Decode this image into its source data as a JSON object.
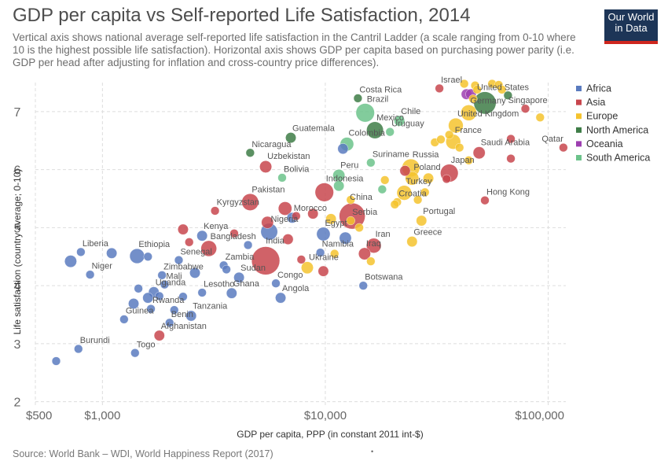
{
  "title": "GDP per capita vs Self-reported Life Satisfaction, 2014",
  "subtitle": "Vertical axis shows national average self-reported life satisfaction in the Cantril Ladder (a scale ranging from 0-10 where 10 is the highest possible life satisfaction). Horizontal axis shows GDP per capita based on purchasing power parity (i.e. GDP per head after adjusting for inflation and cross-country price differences).",
  "logo": {
    "line1": "Our World",
    "line2": "in Data"
  },
  "source": "Source: World Bank – WDI, World Happiness Report (2017)",
  "colors": {
    "Africa": "#5a7bbf",
    "Asia": "#c8464d",
    "Europe": "#f5c32e",
    "North America": "#3e7d47",
    "Oceania": "#9d3fb0",
    "South America": "#6cc38b"
  },
  "chart_data": {
    "type": "scatter",
    "title": "GDP per capita vs Self-reported Life Satisfaction, 2014",
    "xlabel": "GDP per capita, PPP (in constant 2011 int-$)",
    "ylabel": "Life satisfaction (country average; 0-10)",
    "xscale": "log",
    "xlim": [
      500,
      120000
    ],
    "ylim": [
      1.9,
      7.5
    ],
    "xticks": [
      {
        "v": 500,
        "t": "$500"
      },
      {
        "v": 1000,
        "t": "$1,000"
      },
      {
        "v": 10000,
        "t": "$10,000"
      },
      {
        "v": 100000,
        "t": "$100,000"
      }
    ],
    "yticks": [
      2,
      3,
      4,
      5,
      6,
      7
    ],
    "grid": true,
    "legend_position": "right",
    "legend": [
      "Africa",
      "Asia",
      "Europe",
      "North America",
      "Oceania",
      "South America"
    ],
    "points": [
      {
        "name": "Liberia",
        "x": 800,
        "y": 4.58,
        "region": "Africa",
        "pop": 1,
        "label": true
      },
      {
        "name": "Niger",
        "x": 880,
        "y": 4.19,
        "region": "Africa",
        "pop": 1,
        "label": true
      },
      {
        "name": "Burundi",
        "x": 780,
        "y": 2.91,
        "region": "Africa",
        "pop": 1,
        "label": true
      },
      {
        "name": "Togo",
        "x": 1400,
        "y": 2.84,
        "region": "Africa",
        "pop": 1,
        "label": true
      },
      {
        "name": "Ethiopia",
        "x": 1430,
        "y": 4.51,
        "region": "Africa",
        "pop": 5,
        "label": true
      },
      {
        "name": "Uganda",
        "x": 1700,
        "y": 3.89,
        "region": "Africa",
        "pop": 2,
        "label": true
      },
      {
        "name": "Mali",
        "x": 1900,
        "y": 4.02,
        "region": "Africa",
        "pop": 1,
        "label": true
      },
      {
        "name": "Rwanda",
        "x": 1650,
        "y": 3.6,
        "region": "Africa",
        "pop": 1,
        "label": true
      },
      {
        "name": "Guinea",
        "x": 1250,
        "y": 3.42,
        "region": "Africa",
        "pop": 1,
        "label": true
      },
      {
        "name": "Benin",
        "x": 2000,
        "y": 3.36,
        "region": "Africa",
        "pop": 1,
        "label": true
      },
      {
        "name": "Tanzania",
        "x": 2500,
        "y": 3.48,
        "region": "Africa",
        "pop": 2,
        "label": true
      },
      {
        "name": "Zimbabwe",
        "x": 1850,
        "y": 4.18,
        "region": "Africa",
        "pop": 1,
        "label": true
      },
      {
        "name": "Senegal",
        "x": 2200,
        "y": 4.44,
        "region": "Africa",
        "pop": 1,
        "label": true
      },
      {
        "name": "Kenya",
        "x": 2800,
        "y": 4.86,
        "region": "Africa",
        "pop": 2,
        "label": true
      },
      {
        "name": "Zambia",
        "x": 3500,
        "y": 4.35,
        "region": "Africa",
        "pop": 1,
        "label": true
      },
      {
        "name": "Sudan",
        "x": 4100,
        "y": 4.14,
        "region": "Africa",
        "pop": 2,
        "label": true
      },
      {
        "name": "Ghana",
        "x": 3800,
        "y": 3.87,
        "region": "Africa",
        "pop": 2,
        "label": true
      },
      {
        "name": "Congo",
        "x": 6000,
        "y": 4.04,
        "region": "Africa",
        "pop": 1,
        "label": true
      },
      {
        "name": "Angola",
        "x": 6300,
        "y": 3.79,
        "region": "Africa",
        "pop": 2,
        "label": true
      },
      {
        "name": "Nigeria",
        "x": 5600,
        "y": 4.93,
        "region": "Africa",
        "pop": 7,
        "label": true
      },
      {
        "name": "Egypt",
        "x": 9800,
        "y": 4.89,
        "region": "Africa",
        "pop": 4,
        "label": true
      },
      {
        "name": "Namibia",
        "x": 9500,
        "y": 4.57,
        "region": "Africa",
        "pop": 1,
        "label": true
      },
      {
        "name": "Botswana",
        "x": 14800,
        "y": 4.0,
        "region": "Africa",
        "pop": 1,
        "label": true
      },
      {
        "name": "Afghanistan",
        "x": 1800,
        "y": 3.14,
        "region": "Asia",
        "pop": 2,
        "label": true
      },
      {
        "name": "Bangladesh",
        "x": 3000,
        "y": 4.64,
        "region": "Asia",
        "pop": 6,
        "label": true
      },
      {
        "name": "Lesotho",
        "x": 2800,
        "y": 3.88,
        "region": "Africa",
        "pop": 1,
        "label": true
      },
      {
        "name": "India",
        "x": 5400,
        "y": 4.43,
        "region": "Asia",
        "pop": 24,
        "label": true
      },
      {
        "name": "Kyrgyzstan",
        "x": 3200,
        "y": 5.29,
        "region": "Asia",
        "pop": 1,
        "label": true
      },
      {
        "name": "Pakistan",
        "x": 4600,
        "y": 5.44,
        "region": "Asia",
        "pop": 7,
        "label": true
      },
      {
        "name": "Morocco",
        "x": 7100,
        "y": 5.17,
        "region": "Africa",
        "pop": 2,
        "label": true
      },
      {
        "name": "Indonesia",
        "x": 9900,
        "y": 5.61,
        "region": "Asia",
        "pop": 9,
        "label": true
      },
      {
        "name": "China",
        "x": 13200,
        "y": 5.2,
        "region": "Asia",
        "pop": 20,
        "label": true
      },
      {
        "name": "Serbia",
        "x": 13000,
        "y": 5.12,
        "region": "Europe",
        "pop": 1,
        "label": true
      },
      {
        "name": "Ukraine",
        "x": 8300,
        "y": 4.31,
        "region": "Europe",
        "pop": 3,
        "label": true
      },
      {
        "name": "Iran",
        "x": 16500,
        "y": 4.69,
        "region": "Asia",
        "pop": 5,
        "label": true
      },
      {
        "name": "Iraq",
        "x": 15000,
        "y": 4.55,
        "region": "Asia",
        "pop": 3,
        "label": true
      },
      {
        "name": "Greece",
        "x": 24500,
        "y": 4.76,
        "region": "Europe",
        "pop": 2,
        "label": true
      },
      {
        "name": "Portugal",
        "x": 27000,
        "y": 5.12,
        "region": "Europe",
        "pop": 2,
        "label": true
      },
      {
        "name": "Croatia",
        "x": 21000,
        "y": 5.44,
        "region": "Europe",
        "pop": 1,
        "label": true
      },
      {
        "name": "Turkey",
        "x": 22600,
        "y": 5.6,
        "region": "Europe",
        "pop": 5,
        "label": true
      },
      {
        "name": "Poland",
        "x": 24500,
        "y": 5.85,
        "region": "Europe",
        "pop": 4,
        "label": true
      },
      {
        "name": "Russia",
        "x": 24200,
        "y": 6.03,
        "region": "Europe",
        "pop": 8,
        "label": true
      },
      {
        "name": "Japan",
        "x": 36000,
        "y": 5.94,
        "region": "Asia",
        "pop": 8,
        "label": true
      },
      {
        "name": "Hong Kong",
        "x": 52000,
        "y": 5.47,
        "region": "Asia",
        "pop": 1,
        "label": true
      },
      {
        "name": "Saudi Arabia",
        "x": 49000,
        "y": 6.29,
        "region": "Asia",
        "pop": 3,
        "label": true
      },
      {
        "name": "Qatar",
        "x": 117000,
        "y": 6.38,
        "region": "Asia",
        "pop": 1,
        "label": true
      },
      {
        "name": "France",
        "x": 37500,
        "y": 6.48,
        "region": "Europe",
        "pop": 5,
        "label": true
      },
      {
        "name": "United Kingdom",
        "x": 38500,
        "y": 6.76,
        "region": "Europe",
        "pop": 5,
        "label": true
      },
      {
        "name": "Germany",
        "x": 44000,
        "y": 6.98,
        "region": "Europe",
        "pop": 6,
        "label": true
      },
      {
        "name": "United States",
        "x": 52000,
        "y": 7.15,
        "region": "North America",
        "pop": 14,
        "label": true
      },
      {
        "name": "Singapore",
        "x": 79000,
        "y": 7.05,
        "region": "Asia",
        "pop": 1,
        "label": true
      },
      {
        "name": "Israel",
        "x": 32500,
        "y": 7.4,
        "region": "Asia",
        "pop": 1,
        "label": true
      },
      {
        "name": "Costa Rica",
        "x": 14000,
        "y": 7.23,
        "region": "North America",
        "pop": 1,
        "label": true
      },
      {
        "name": "Brazil",
        "x": 15100,
        "y": 6.98,
        "region": "South America",
        "pop": 9,
        "label": true
      },
      {
        "name": "Mexico",
        "x": 16700,
        "y": 6.68,
        "region": "North America",
        "pop": 7,
        "label": true
      },
      {
        "name": "Chile",
        "x": 21500,
        "y": 6.84,
        "region": "South America",
        "pop": 2,
        "label": true
      },
      {
        "name": "Uruguay",
        "x": 19500,
        "y": 6.65,
        "region": "South America",
        "pop": 1,
        "label": true
      },
      {
        "name": "Colombia",
        "x": 12500,
        "y": 6.44,
        "region": "South America",
        "pop": 4,
        "label": true
      },
      {
        "name": "Suriname",
        "x": 16000,
        "y": 6.12,
        "region": "South America",
        "pop": 1,
        "label": true
      },
      {
        "name": "Guatemala",
        "x": 7000,
        "y": 6.55,
        "region": "North America",
        "pop": 2,
        "label": true
      },
      {
        "name": "Nicaragua",
        "x": 4600,
        "y": 6.29,
        "region": "North America",
        "pop": 1,
        "label": true
      },
      {
        "name": "Uzbekistan",
        "x": 5400,
        "y": 6.05,
        "region": "Asia",
        "pop": 3,
        "label": true
      },
      {
        "name": "Bolivia",
        "x": 6400,
        "y": 5.86,
        "region": "South America",
        "pop": 1,
        "label": true
      },
      {
        "name": "Peru",
        "x": 11500,
        "y": 5.9,
        "region": "South America",
        "pop": 3,
        "label": true
      },
      {
        "name": "",
        "x": 620,
        "y": 2.7,
        "region": "Africa",
        "pop": 1,
        "label": false
      },
      {
        "name": "",
        "x": 720,
        "y": 4.42,
        "region": "Africa",
        "pop": 3,
        "label": false
      },
      {
        "name": "",
        "x": 1100,
        "y": 4.56,
        "region": "Africa",
        "pop": 2,
        "label": false
      },
      {
        "name": "",
        "x": 1600,
        "y": 4.5,
        "region": "Africa",
        "pop": 1,
        "label": false
      },
      {
        "name": "",
        "x": 1450,
        "y": 3.95,
        "region": "Africa",
        "pop": 1,
        "label": false
      },
      {
        "name": "",
        "x": 1600,
        "y": 3.79,
        "region": "Africa",
        "pop": 2,
        "label": false
      },
      {
        "name": "",
        "x": 1380,
        "y": 3.69,
        "region": "Africa",
        "pop": 2,
        "label": false
      },
      {
        "name": "",
        "x": 1800,
        "y": 3.82,
        "region": "Africa",
        "pop": 1,
        "label": false
      },
      {
        "name": "",
        "x": 2100,
        "y": 3.58,
        "region": "Africa",
        "pop": 1,
        "label": false
      },
      {
        "name": "",
        "x": 2300,
        "y": 3.81,
        "region": "Africa",
        "pop": 1,
        "label": false
      },
      {
        "name": "",
        "x": 2600,
        "y": 4.22,
        "region": "Africa",
        "pop": 2,
        "label": false
      },
      {
        "name": "",
        "x": 2450,
        "y": 4.75,
        "region": "Asia",
        "pop": 1,
        "label": false
      },
      {
        "name": "",
        "x": 2300,
        "y": 4.97,
        "region": "Asia",
        "pop": 2,
        "label": false
      },
      {
        "name": "",
        "x": 3600,
        "y": 4.28,
        "region": "Africa",
        "pop": 1,
        "label": false
      },
      {
        "name": "",
        "x": 3900,
        "y": 4.9,
        "region": "Asia",
        "pop": 1,
        "label": false
      },
      {
        "name": "",
        "x": 4500,
        "y": 4.7,
        "region": "Africa",
        "pop": 1,
        "label": false
      },
      {
        "name": "",
        "x": 5500,
        "y": 5.09,
        "region": "Asia",
        "pop": 3,
        "label": false
      },
      {
        "name": "",
        "x": 6600,
        "y": 5.33,
        "region": "Asia",
        "pop": 4,
        "label": false
      },
      {
        "name": "",
        "x": 6800,
        "y": 4.8,
        "region": "Asia",
        "pop": 2,
        "label": false
      },
      {
        "name": "",
        "x": 7400,
        "y": 5.2,
        "region": "Asia",
        "pop": 1,
        "label": false
      },
      {
        "name": "",
        "x": 7800,
        "y": 4.45,
        "region": "Asia",
        "pop": 1,
        "label": false
      },
      {
        "name": "",
        "x": 8800,
        "y": 5.24,
        "region": "Asia",
        "pop": 2,
        "label": false
      },
      {
        "name": "",
        "x": 9800,
        "y": 4.25,
        "region": "Asia",
        "pop": 2,
        "label": false
      },
      {
        "name": "",
        "x": 10600,
        "y": 5.15,
        "region": "Europe",
        "pop": 2,
        "label": false
      },
      {
        "name": "",
        "x": 11000,
        "y": 4.55,
        "region": "Europe",
        "pop": 1,
        "label": false
      },
      {
        "name": "",
        "x": 12300,
        "y": 4.82,
        "region": "Africa",
        "pop": 3,
        "label": false
      },
      {
        "name": "",
        "x": 11500,
        "y": 5.72,
        "region": "South America",
        "pop": 2,
        "label": false
      },
      {
        "name": "",
        "x": 12000,
        "y": 6.36,
        "region": "Africa",
        "pop": 2,
        "label": false
      },
      {
        "name": "",
        "x": 13000,
        "y": 5.48,
        "region": "Europe",
        "pop": 1,
        "label": false
      },
      {
        "name": "",
        "x": 14200,
        "y": 5.0,
        "region": "Europe",
        "pop": 1,
        "label": false
      },
      {
        "name": "",
        "x": 16000,
        "y": 4.42,
        "region": "Europe",
        "pop": 1,
        "label": false
      },
      {
        "name": "",
        "x": 18000,
        "y": 5.66,
        "region": "South America",
        "pop": 1,
        "label": false
      },
      {
        "name": "",
        "x": 18500,
        "y": 5.82,
        "region": "Europe",
        "pop": 1,
        "label": false
      },
      {
        "name": "",
        "x": 20500,
        "y": 5.4,
        "region": "Europe",
        "pop": 1,
        "label": false
      },
      {
        "name": "",
        "x": 22800,
        "y": 5.98,
        "region": "Asia",
        "pop": 2,
        "label": false
      },
      {
        "name": "",
        "x": 26000,
        "y": 5.48,
        "region": "Europe",
        "pop": 1,
        "label": false
      },
      {
        "name": "",
        "x": 28000,
        "y": 5.61,
        "region": "Europe",
        "pop": 1,
        "label": false
      },
      {
        "name": "",
        "x": 29000,
        "y": 5.85,
        "region": "Europe",
        "pop": 2,
        "label": false
      },
      {
        "name": "",
        "x": 31000,
        "y": 6.47,
        "region": "Europe",
        "pop": 1,
        "label": false
      },
      {
        "name": "",
        "x": 33000,
        "y": 6.52,
        "region": "Europe",
        "pop": 1,
        "label": false
      },
      {
        "name": "",
        "x": 35000,
        "y": 5.84,
        "region": "Asia",
        "pop": 1,
        "label": false
      },
      {
        "name": "",
        "x": 36000,
        "y": 6.6,
        "region": "Europe",
        "pop": 1,
        "label": false
      },
      {
        "name": "",
        "x": 40000,
        "y": 6.38,
        "region": "Europe",
        "pop": 1,
        "label": false
      },
      {
        "name": "",
        "x": 44000,
        "y": 6.16,
        "region": "Europe",
        "pop": 1,
        "label": false
      },
      {
        "name": "",
        "x": 43000,
        "y": 7.3,
        "region": "Oceania",
        "pop": 2,
        "label": false
      },
      {
        "name": "",
        "x": 45000,
        "y": 7.3,
        "region": "Oceania",
        "pop": 2,
        "label": false
      },
      {
        "name": "",
        "x": 47000,
        "y": 7.45,
        "region": "Europe",
        "pop": 1,
        "label": false
      },
      {
        "name": "",
        "x": 46000,
        "y": 7.22,
        "region": "Europe",
        "pop": 1,
        "label": false
      },
      {
        "name": "",
        "x": 42000,
        "y": 7.48,
        "region": "Europe",
        "pop": 1,
        "label": false
      },
      {
        "name": "",
        "x": 48000,
        "y": 7.38,
        "region": "Europe",
        "pop": 1,
        "label": false
      },
      {
        "name": "",
        "x": 56000,
        "y": 7.48,
        "region": "Europe",
        "pop": 1,
        "label": false
      },
      {
        "name": "",
        "x": 60000,
        "y": 7.46,
        "region": "Europe",
        "pop": 1,
        "label": false
      },
      {
        "name": "",
        "x": 62000,
        "y": 7.38,
        "region": "Europe",
        "pop": 1,
        "label": false
      },
      {
        "name": "",
        "x": 66000,
        "y": 7.28,
        "region": "North America",
        "pop": 1,
        "label": false
      },
      {
        "name": "",
        "x": 92000,
        "y": 6.9,
        "region": "Europe",
        "pop": 1,
        "label": false
      },
      {
        "name": "",
        "x": 68000,
        "y": 6.53,
        "region": "Asia",
        "pop": 1,
        "label": false
      },
      {
        "name": "",
        "x": 68000,
        "y": 6.19,
        "region": "Asia",
        "pop": 1,
        "label": false
      }
    ]
  }
}
